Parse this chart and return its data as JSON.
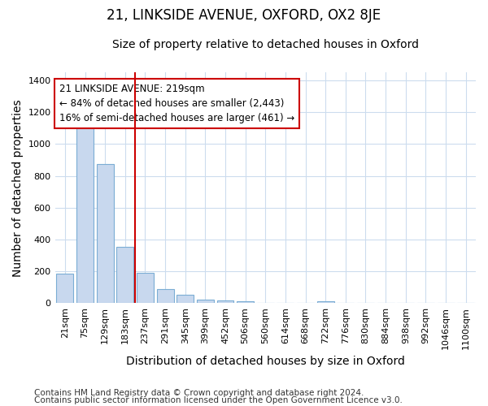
{
  "title": "21, LINKSIDE AVENUE, OXFORD, OX2 8JE",
  "subtitle": "Size of property relative to detached houses in Oxford",
  "xlabel": "Distribution of detached houses by size in Oxford",
  "ylabel": "Number of detached properties",
  "categories": [
    "21sqm",
    "75sqm",
    "129sqm",
    "183sqm",
    "237sqm",
    "291sqm",
    "345sqm",
    "399sqm",
    "452sqm",
    "506sqm",
    "560sqm",
    "614sqm",
    "668sqm",
    "722sqm",
    "776sqm",
    "830sqm",
    "884sqm",
    "938sqm",
    "992sqm",
    "1046sqm",
    "1100sqm"
  ],
  "values": [
    185,
    1110,
    875,
    355,
    190,
    90,
    55,
    25,
    18,
    13,
    0,
    0,
    0,
    13,
    0,
    0,
    0,
    0,
    0,
    0,
    0
  ],
  "bar_color": "#c8d8ee",
  "bar_edge_color": "#7badd4",
  "vline_pos": 3.5,
  "annotation_lines": [
    "21 LINKSIDE AVENUE: 219sqm",
    "← 84% of detached houses are smaller (2,443)",
    "16% of semi-detached houses are larger (461) →"
  ],
  "annotation_box_color": "#ffffff",
  "annotation_box_edge_color": "#cc0000",
  "vline_color": "#cc0000",
  "ylim": [
    0,
    1450
  ],
  "yticks": [
    0,
    200,
    400,
    600,
    800,
    1000,
    1200,
    1400
  ],
  "footnote1": "Contains HM Land Registry data © Crown copyright and database right 2024.",
  "footnote2": "Contains public sector information licensed under the Open Government Licence v3.0.",
  "background_color": "#ffffff",
  "grid_color": "#ccdcee",
  "title_fontsize": 12,
  "subtitle_fontsize": 10,
  "axis_label_fontsize": 10,
  "tick_fontsize": 8,
  "annotation_fontsize": 8.5,
  "footnote_fontsize": 7.5
}
